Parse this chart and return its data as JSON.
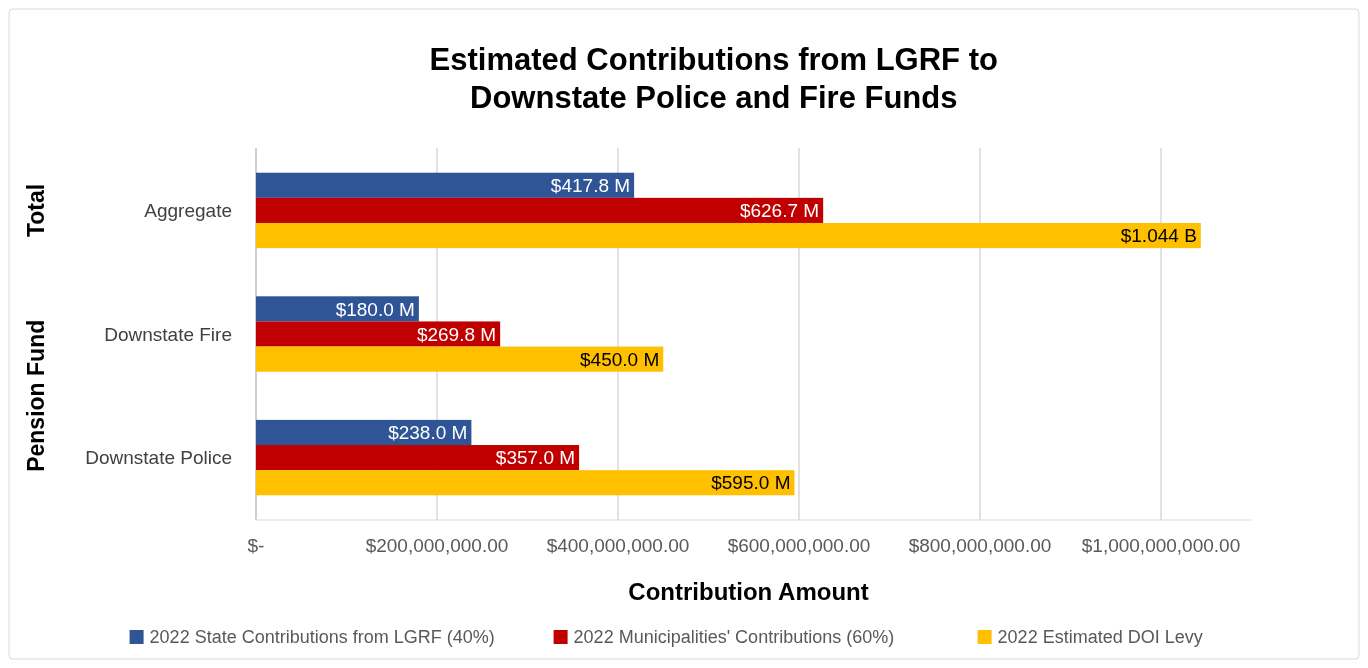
{
  "chart_data": {
    "type": "bar",
    "orientation": "horizontal",
    "title": "Estimated Contributions from LGRF to Downstate Police and Fire Funds",
    "xlabel": "Contribution Amount",
    "categories": [
      "Aggregate",
      "Downstate Fire",
      "Downstate Police"
    ],
    "series": [
      {
        "name": "2022 State Contributions from LGRF (40%)",
        "color": "#2f5597",
        "values": [
          417800000,
          180000000,
          238000000
        ],
        "value_labels": [
          "$417.8 M",
          "$180.0 M",
          "$238.0 M"
        ]
      },
      {
        "name": "2022 Municipalities' Contributions (60%)",
        "color": "#c00000",
        "values": [
          626700000,
          269800000,
          357000000
        ],
        "value_labels": [
          "$626.7 M",
          "$269.8 M",
          "$357.0 M"
        ]
      },
      {
        "name": "2022 Estimated DOI Levy",
        "color": "#ffc000",
        "values": [
          1044000000,
          450000000,
          595000000
        ],
        "value_labels": [
          "$1.044 B",
          "$450.0 M",
          "$595.0 M"
        ]
      }
    ],
    "annotations": [
      "Total",
      "Pension Fund"
    ],
    "xlim": [
      0,
      1100000000
    ],
    "xticks": [
      {
        "value": 0,
        "label": "$-"
      },
      {
        "value": 200000000,
        "label": "$200,000,000.00"
      },
      {
        "value": 400000000,
        "label": "$400,000,000.00"
      },
      {
        "value": 600000000,
        "label": "$600,000,000.00"
      },
      {
        "value": 800000000,
        "label": "$800,000,000.00"
      },
      {
        "value": 1000000000,
        "label": "$1,000,000,000.00"
      }
    ],
    "grid": "x",
    "legend": "bottom"
  }
}
